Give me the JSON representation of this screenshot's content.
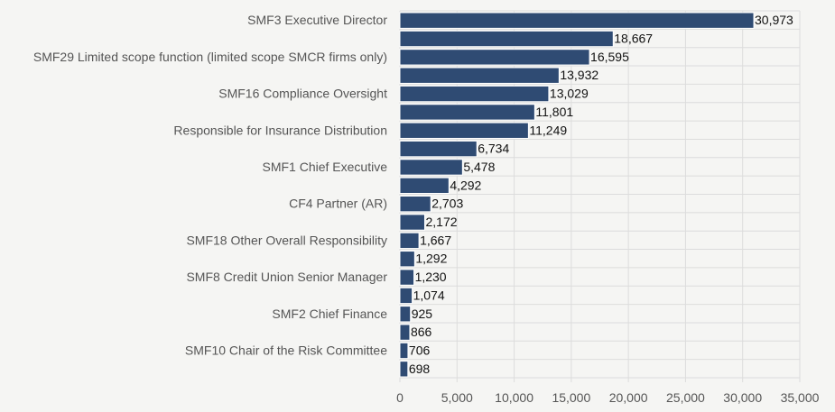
{
  "chart_data": {
    "type": "bar",
    "orientation": "horizontal",
    "title": "",
    "xlabel": "",
    "ylabel": "",
    "categories": [
      "SMF3 Executive Director",
      "",
      "SMF29 Limited scope function (limited scope SMCR firms only)",
      "",
      "SMF16 Compliance Oversight",
      "",
      "Responsible for Insurance Distribution",
      "",
      "SMF1 Chief Executive",
      "",
      "CF4 Partner (AR)",
      "",
      "SMF18 Other Overall Responsibility",
      "",
      "SMF8 Credit Union Senior Manager",
      "",
      "SMF2 Chief Finance",
      "",
      "SMF10 Chair of the Risk Committee",
      ""
    ],
    "values": [
      30973,
      18667,
      16595,
      13932,
      13029,
      11801,
      11249,
      6734,
      5478,
      4292,
      2703,
      2172,
      1667,
      1292,
      1230,
      1074,
      925,
      866,
      706,
      698
    ],
    "value_labels": [
      "30,973",
      "18,667",
      "16,595",
      "13,932",
      "13,029",
      "11,801",
      "11,249",
      "6,734",
      "5,478",
      "4,292",
      "2,703",
      "2,172",
      "1,667",
      "1,292",
      "1,230",
      "1,074",
      "925",
      "866",
      "706",
      "698"
    ],
    "xlim": [
      0,
      35000
    ],
    "xticks": [
      0,
      5000,
      10000,
      15000,
      20000,
      25000,
      30000,
      35000
    ],
    "xtick_labels": [
      "0",
      "5,000",
      "10,000",
      "15,000",
      "20,000",
      "25,000",
      "30,000",
      "35,000"
    ],
    "grid": true,
    "legend": "none",
    "bar_color": "#2f4b73"
  }
}
